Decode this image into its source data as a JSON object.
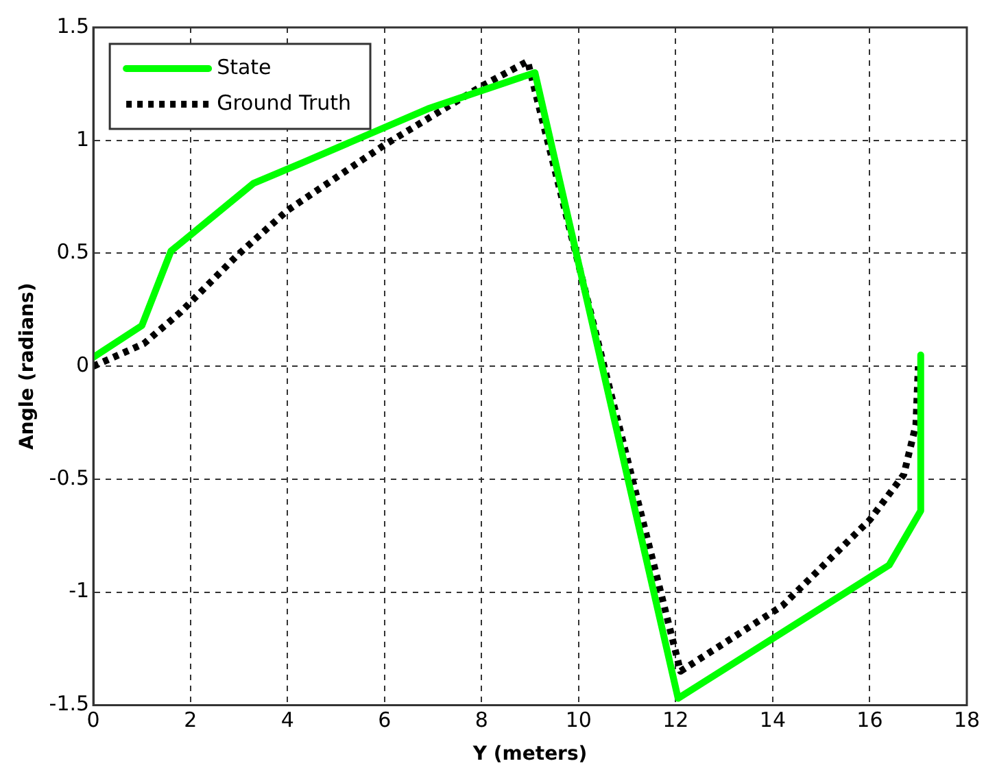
{
  "chart_data": {
    "type": "line",
    "xlabel": "Y (meters)",
    "ylabel": "Angle (radians)",
    "xlim": [
      0,
      18
    ],
    "xticks": [
      0,
      2,
      4,
      6,
      8,
      10,
      12,
      14,
      16,
      18
    ],
    "ylim": [
      -1.5,
      1.5
    ],
    "yticks": [
      -1.5,
      -1,
      -0.5,
      0,
      0.5,
      1,
      1.5
    ],
    "grid": true,
    "legend": "top left",
    "marker": "none",
    "series": [
      {
        "name": "State",
        "color": "#00ff00",
        "line_style": "solid",
        "x": [
          0,
          1.0,
          1.6,
          3.3,
          4.3,
          6.9,
          9.1,
          12.05,
          16.4,
          17.05,
          17.05
        ],
        "values": [
          0.04,
          0.18,
          0.51,
          0.81,
          0.9,
          1.14,
          1.3,
          -1.47,
          -0.88,
          -0.64,
          0.05
        ]
      },
      {
        "name": "Ground Truth",
        "color": "#000000",
        "line_style": "dotted",
        "x": [
          0,
          1.04,
          1.8,
          2.96,
          4.0,
          6.0,
          8.0,
          8.95,
          12.1,
          14.2,
          16.0,
          16.7,
          16.95,
          17.0
        ],
        "values": [
          0,
          0.1,
          0.24,
          0.49,
          0.69,
          0.98,
          1.24,
          1.35,
          -1.35,
          -1.06,
          -0.68,
          -0.48,
          -0.26,
          0
        ]
      }
    ]
  }
}
